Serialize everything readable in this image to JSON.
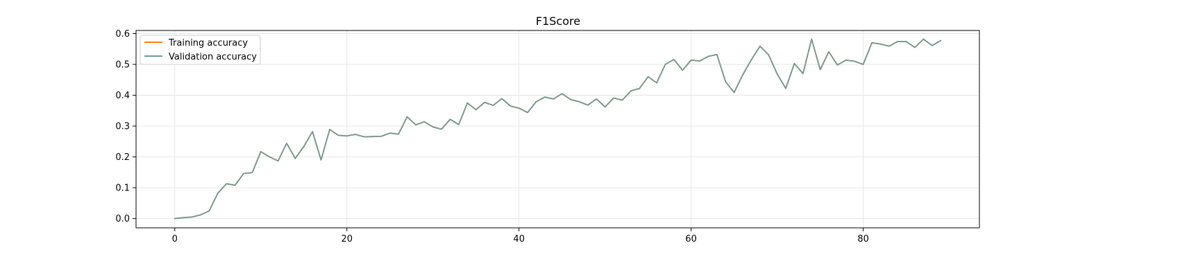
{
  "chart_data": {
    "type": "line",
    "title": "F1Score",
    "xlabel": "",
    "ylabel": "",
    "xlim": [
      -4.5,
      93.5
    ],
    "ylim": [
      -0.03,
      0.61
    ],
    "xticks": [
      0,
      20,
      40,
      60,
      80
    ],
    "xtick_labels": [
      "0",
      "20",
      "40",
      "60",
      "80"
    ],
    "yticks": [
      0.0,
      0.1,
      0.2,
      0.3,
      0.4,
      0.5,
      0.6
    ],
    "ytick_labels": [
      "0.0",
      "0.1",
      "0.2",
      "0.3",
      "0.4",
      "0.5",
      "0.6"
    ],
    "grid": true,
    "legend_position": "top-left",
    "x": [
      0,
      1,
      2,
      3,
      4,
      5,
      6,
      7,
      8,
      9,
      10,
      11,
      12,
      13,
      14,
      15,
      16,
      17,
      18,
      19,
      20,
      21,
      22,
      23,
      24,
      25,
      26,
      27,
      28,
      29,
      30,
      31,
      32,
      33,
      34,
      35,
      36,
      37,
      38,
      39,
      40,
      41,
      42,
      43,
      44,
      45,
      46,
      47,
      48,
      49,
      50,
      51,
      52,
      53,
      54,
      55,
      56,
      57,
      58,
      59,
      60,
      61,
      62,
      63,
      64,
      65,
      66,
      67,
      68,
      69,
      70,
      71,
      72,
      73,
      74,
      75,
      76,
      77,
      78,
      79,
      80,
      81,
      82,
      83,
      84,
      85,
      86,
      87,
      88,
      89
    ],
    "series": [
      {
        "name": "Training accuracy",
        "color": "#ff7f0e",
        "values": [
          0.0,
          0.003,
          0.005,
          0.012,
          0.025,
          0.082,
          0.113,
          0.108,
          0.146,
          0.149,
          0.217,
          0.2,
          0.187,
          0.244,
          0.195,
          0.234,
          0.282,
          0.19,
          0.289,
          0.27,
          0.268,
          0.273,
          0.265,
          0.266,
          0.267,
          0.277,
          0.274,
          0.33,
          0.304,
          0.314,
          0.297,
          0.29,
          0.322,
          0.305,
          0.375,
          0.353,
          0.377,
          0.367,
          0.389,
          0.365,
          0.358,
          0.344,
          0.379,
          0.394,
          0.388,
          0.405,
          0.386,
          0.379,
          0.368,
          0.388,
          0.362,
          0.391,
          0.384,
          0.414,
          0.422,
          0.46,
          0.44,
          0.5,
          0.516,
          0.481,
          0.514,
          0.511,
          0.526,
          0.532,
          0.444,
          0.409,
          0.466,
          0.515,
          0.559,
          0.531,
          0.469,
          0.422,
          0.503,
          0.47,
          0.582,
          0.483,
          0.541,
          0.498,
          0.514,
          0.51,
          0.5,
          0.57,
          0.566,
          0.559,
          0.574,
          0.574,
          0.555,
          0.582,
          0.561,
          0.577
        ]
      },
      {
        "name": "Validation accuracy",
        "color": "#6e9a93",
        "values": [
          0.0,
          0.003,
          0.005,
          0.012,
          0.025,
          0.082,
          0.113,
          0.108,
          0.146,
          0.149,
          0.217,
          0.2,
          0.187,
          0.244,
          0.195,
          0.234,
          0.282,
          0.19,
          0.289,
          0.27,
          0.268,
          0.273,
          0.265,
          0.266,
          0.267,
          0.277,
          0.274,
          0.33,
          0.304,
          0.314,
          0.297,
          0.29,
          0.322,
          0.305,
          0.375,
          0.353,
          0.377,
          0.367,
          0.389,
          0.365,
          0.358,
          0.344,
          0.379,
          0.394,
          0.388,
          0.405,
          0.386,
          0.379,
          0.368,
          0.388,
          0.362,
          0.391,
          0.384,
          0.414,
          0.422,
          0.46,
          0.44,
          0.5,
          0.516,
          0.481,
          0.514,
          0.511,
          0.526,
          0.532,
          0.444,
          0.409,
          0.466,
          0.515,
          0.559,
          0.531,
          0.469,
          0.422,
          0.503,
          0.47,
          0.582,
          0.483,
          0.541,
          0.498,
          0.514,
          0.51,
          0.5,
          0.57,
          0.566,
          0.559,
          0.574,
          0.574,
          0.555,
          0.582,
          0.561,
          0.577
        ]
      }
    ]
  }
}
